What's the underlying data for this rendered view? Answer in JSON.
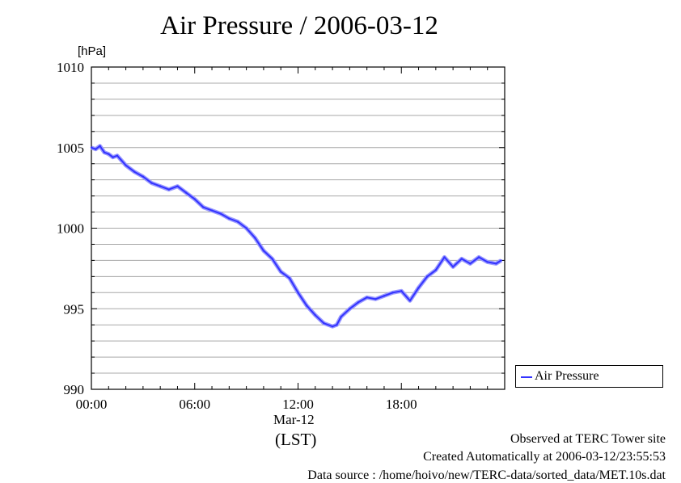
{
  "chart_data": {
    "type": "line",
    "title": "Air Pressure / 2006-03-12",
    "ylabel": "[hPa]",
    "xlabel": "(LST)",
    "x_date_label": "Mar-12",
    "ylim": [
      990,
      1010
    ],
    "xlim": [
      0,
      24
    ],
    "y_ticks": [
      "990",
      "995",
      "1000",
      "1005",
      "1010"
    ],
    "x_ticks": [
      "00:00",
      "06:00",
      "12:00",
      "18:00"
    ],
    "grid": true,
    "legend_position": "bottom-right, outside plot",
    "series": [
      {
        "name": "Air Pressure",
        "color": "#3333ff",
        "x": [
          0.0,
          0.25,
          0.5,
          0.75,
          1.0,
          1.25,
          1.5,
          2.0,
          2.5,
          3.0,
          3.5,
          4.0,
          4.5,
          5.0,
          5.5,
          6.0,
          6.5,
          7.0,
          7.5,
          8.0,
          8.5,
          9.0,
          9.5,
          10.0,
          10.5,
          11.0,
          11.5,
          12.0,
          12.5,
          13.0,
          13.5,
          14.0,
          14.25,
          14.5,
          15.0,
          15.5,
          16.0,
          16.5,
          17.0,
          17.5,
          18.0,
          18.5,
          19.0,
          19.5,
          20.0,
          20.5,
          21.0,
          21.5,
          22.0,
          22.5,
          23.0,
          23.5,
          23.8
        ],
        "y": [
          1005.0,
          1004.9,
          1005.1,
          1004.7,
          1004.6,
          1004.4,
          1004.5,
          1003.9,
          1003.5,
          1003.2,
          1002.8,
          1002.6,
          1002.4,
          1002.6,
          1002.2,
          1001.8,
          1001.3,
          1001.1,
          1000.9,
          1000.6,
          1000.4,
          1000.0,
          999.4,
          998.6,
          998.1,
          997.3,
          996.9,
          996.0,
          995.2,
          994.6,
          994.1,
          993.9,
          994.0,
          994.5,
          995.0,
          995.4,
          995.7,
          995.6,
          995.8,
          996.0,
          996.1,
          995.5,
          996.3,
          997.0,
          997.4,
          998.2,
          997.6,
          998.1,
          997.8,
          998.2,
          997.9,
          997.8,
          998.0
        ]
      }
    ]
  },
  "footer": {
    "line1": "Observed at TERC Tower site",
    "line2": "Created Automatically at 2006-03-12/23:55:53",
    "line3": "Data source : /home/hoivo/new/TERC-data/sorted_data/MET.10s.dat"
  }
}
